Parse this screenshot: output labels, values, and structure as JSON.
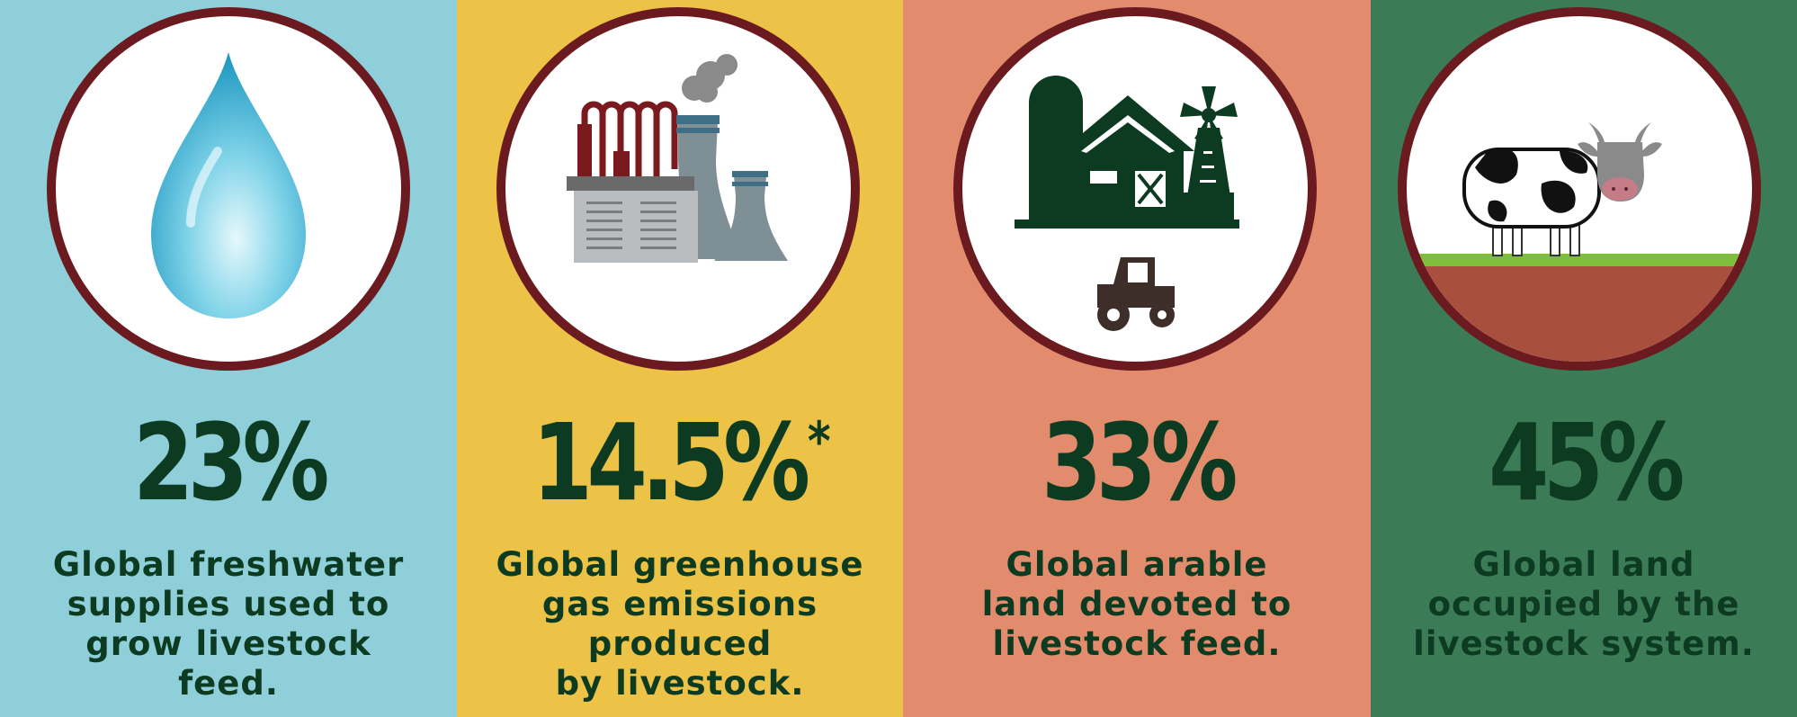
{
  "colors": {
    "panel_water": "#8ecfd9",
    "panel_emissions": "#ecc247",
    "panel_arable": "#e38c6d",
    "panel_land": "#3b7b56",
    "text_dark": "#0d3b22",
    "circle_border": "#6b1a1f",
    "circle_fill": "#ffffff"
  },
  "stats": [
    {
      "icon": "water-drop-icon",
      "value": "23%",
      "lines": [
        "Global freshwater",
        "supplies used to",
        "grow livestock",
        "feed."
      ]
    },
    {
      "icon": "factory-icon",
      "value": "14.5%",
      "marker": "*",
      "lines": [
        "Global greenhouse",
        "gas emissions",
        "produced",
        "by livestock."
      ]
    },
    {
      "icon": "farm-icon",
      "value": "33%",
      "lines": [
        "Global arable",
        "land devoted to",
        "livestock feed."
      ]
    },
    {
      "icon": "cow-icon",
      "value": "45%",
      "lines": [
        "Global land",
        "occupied by the",
        "livestock system."
      ]
    }
  ]
}
